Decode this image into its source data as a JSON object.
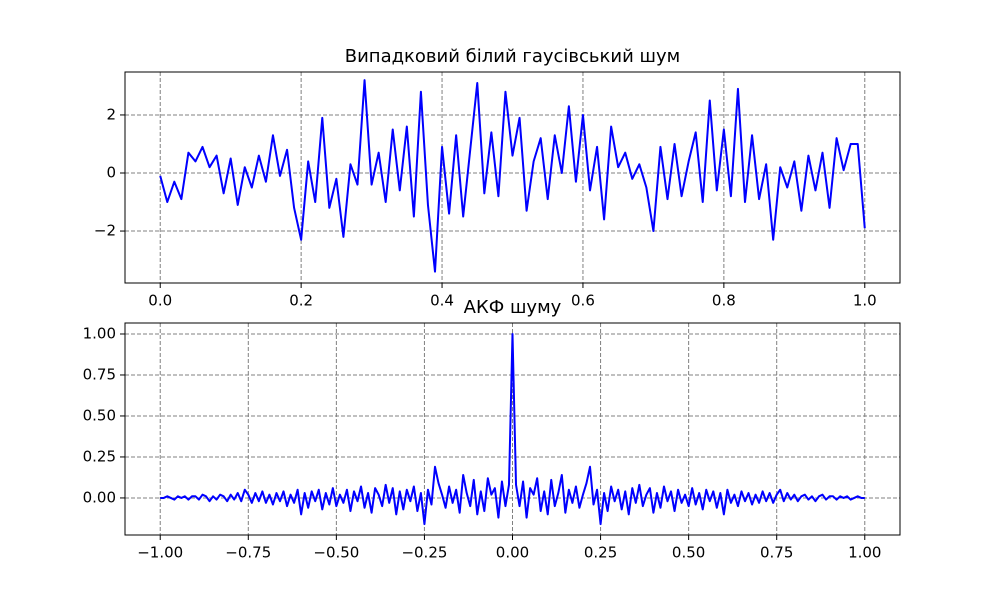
{
  "chart_data": [
    {
      "type": "line",
      "title": "Випадковий білий гаусівський шум",
      "color": "#0000ff",
      "grid": true,
      "xlim": [
        -0.05,
        1.05
      ],
      "ylim": [
        -3.79,
        3.48
      ],
      "xticks": [
        {
          "value": 0,
          "label": "0.0"
        },
        {
          "value": 0.2,
          "label": "0.2"
        },
        {
          "value": 0.4,
          "label": "0.4"
        },
        {
          "value": 0.6,
          "label": "0.6"
        },
        {
          "value": 0.8,
          "label": "0.8"
        },
        {
          "value": 1,
          "label": "1.0"
        }
      ],
      "yticks": [
        {
          "value": -2,
          "label": "−2"
        },
        0,
        2
      ],
      "x": [
        0,
        0.01,
        0.02,
        0.03,
        0.04,
        0.05,
        0.06,
        0.07,
        0.08,
        0.09,
        0.1,
        0.11,
        0.12,
        0.13,
        0.14,
        0.15,
        0.16,
        0.17,
        0.18,
        0.19,
        0.2,
        0.21,
        0.22,
        0.23,
        0.24,
        0.25,
        0.26,
        0.27,
        0.28,
        0.29,
        0.3,
        0.31,
        0.32,
        0.33,
        0.34,
        0.35,
        0.36,
        0.37,
        0.38,
        0.39,
        0.4,
        0.41,
        0.42,
        0.43,
        0.44,
        0.45,
        0.46,
        0.47,
        0.48,
        0.49,
        0.5,
        0.51,
        0.52,
        0.53,
        0.54,
        0.55,
        0.56,
        0.57,
        0.58,
        0.59,
        0.6,
        0.61,
        0.62,
        0.63,
        0.64,
        0.65,
        0.66,
        0.67,
        0.68,
        0.69,
        0.7,
        0.71,
        0.72,
        0.73,
        0.74,
        0.75,
        0.76,
        0.77,
        0.78,
        0.79,
        0.8,
        0.81,
        0.82,
        0.83,
        0.84,
        0.85,
        0.86,
        0.87,
        0.88,
        0.89,
        0.9,
        0.91,
        0.92,
        0.93,
        0.94,
        0.95,
        0.96,
        0.97,
        0.98,
        0.99,
        1
      ],
      "values": [
        -0.1,
        -1.0,
        -0.3,
        -0.9,
        0.7,
        0.4,
        0.9,
        0.2,
        0.6,
        -0.7,
        0.5,
        -1.1,
        0.2,
        -0.5,
        0.6,
        -0.3,
        1.3,
        -0.1,
        0.8,
        -1.2,
        -2.3,
        0.4,
        -1.0,
        1.9,
        -1.2,
        -0.2,
        -2.2,
        0.3,
        -0.4,
        3.2,
        -0.4,
        0.7,
        -1.0,
        1.5,
        -0.6,
        1.6,
        -1.5,
        2.8,
        -1.1,
        -3.4,
        0.9,
        -1.4,
        1.3,
        -1.5,
        0.8,
        3.1,
        -0.7,
        1.4,
        -0.8,
        2.8,
        0.6,
        1.9,
        -1.3,
        0.4,
        1.2,
        -0.9,
        1.3,
        0.0,
        2.3,
        -0.3,
        2.0,
        -0.6,
        0.9,
        -1.6,
        1.6,
        0.2,
        0.7,
        -0.2,
        0.3,
        -0.5,
        -2.0,
        0.9,
        -0.9,
        1.0,
        -0.8,
        0.4,
        1.4,
        -1.0,
        2.5,
        -0.6,
        1.5,
        -0.8,
        2.9,
        -1.0,
        1.3,
        -0.9,
        0.3,
        -2.3,
        0.2,
        -0.5,
        0.4,
        -1.3,
        0.6,
        -0.6,
        0.7,
        -1.2,
        1.2,
        0.1,
        1.0,
        1.0,
        -1.9
      ]
    },
    {
      "type": "line",
      "title": "АКФ шуму",
      "color": "#0000ff",
      "grid": true,
      "xlim": [
        -1.1,
        1.1
      ],
      "ylim": [
        -0.226,
        1.067
      ],
      "xticks": [
        {
          "value": -1,
          "label": "−1.00"
        },
        {
          "value": -0.75,
          "label": "−0.75"
        },
        {
          "value": -0.5,
          "label": "−0.50"
        },
        {
          "value": -0.25,
          "label": "−0.25"
        },
        {
          "value": 0,
          "label": "0.00"
        },
        {
          "value": 0.25,
          "label": "0.25"
        },
        {
          "value": 0.5,
          "label": "0.50"
        },
        {
          "value": 0.75,
          "label": "0.75"
        },
        {
          "value": 1,
          "label": "1.00"
        }
      ],
      "yticks": [
        {
          "value": 0,
          "label": "0.00"
        },
        {
          "value": 0.25,
          "label": "0.25"
        },
        {
          "value": 0.5,
          "label": "0.50"
        },
        {
          "value": 0.75,
          "label": "0.75"
        },
        {
          "value": 1,
          "label": "1.00"
        }
      ],
      "x": [
        -1,
        -0.99,
        -0.98,
        -0.97,
        -0.96,
        -0.95,
        -0.94,
        -0.93,
        -0.92,
        -0.91,
        -0.9,
        -0.89,
        -0.88,
        -0.87,
        -0.86,
        -0.85,
        -0.84,
        -0.83,
        -0.82,
        -0.81,
        -0.8,
        -0.79,
        -0.78,
        -0.77,
        -0.76,
        -0.75,
        -0.74,
        -0.73,
        -0.72,
        -0.71,
        -0.7,
        -0.69,
        -0.68,
        -0.67,
        -0.66,
        -0.65,
        -0.64,
        -0.63,
        -0.62,
        -0.61,
        -0.6,
        -0.59,
        -0.58,
        -0.57,
        -0.56,
        -0.55,
        -0.54,
        -0.53,
        -0.52,
        -0.51,
        -0.5,
        -0.49,
        -0.48,
        -0.47,
        -0.46,
        -0.45,
        -0.44,
        -0.43,
        -0.42,
        -0.41,
        -0.4,
        -0.39,
        -0.38,
        -0.37,
        -0.36,
        -0.35,
        -0.34,
        -0.33,
        -0.32,
        -0.31,
        -0.3,
        -0.29,
        -0.28,
        -0.27,
        -0.26,
        -0.25,
        -0.24,
        -0.23,
        -0.22,
        -0.21,
        -0.2,
        -0.19,
        -0.18,
        -0.17,
        -0.16,
        -0.15,
        -0.14,
        -0.13,
        -0.12,
        -0.11,
        -0.1,
        -0.09,
        -0.08,
        -0.07,
        -0.06,
        -0.05,
        -0.04,
        -0.03,
        -0.02,
        -0.01,
        0,
        0.01,
        0.02,
        0.03,
        0.04,
        0.05,
        0.06,
        0.07,
        0.08,
        0.09,
        0.1,
        0.11,
        0.12,
        0.13,
        0.14,
        0.15,
        0.16,
        0.17,
        0.18,
        0.19,
        0.2,
        0.21,
        0.22,
        0.23,
        0.24,
        0.25,
        0.26,
        0.27,
        0.28,
        0.29,
        0.3,
        0.31,
        0.32,
        0.33,
        0.34,
        0.35,
        0.36,
        0.37,
        0.38,
        0.39,
        0.4,
        0.41,
        0.42,
        0.43,
        0.44,
        0.45,
        0.46,
        0.47,
        0.48,
        0.49,
        0.5,
        0.51,
        0.52,
        0.53,
        0.54,
        0.55,
        0.56,
        0.57,
        0.58,
        0.59,
        0.6,
        0.61,
        0.62,
        0.63,
        0.64,
        0.65,
        0.66,
        0.67,
        0.68,
        0.69,
        0.7,
        0.71,
        0.72,
        0.73,
        0.74,
        0.75,
        0.76,
        0.77,
        0.78,
        0.79,
        0.8,
        0.81,
        0.82,
        0.83,
        0.84,
        0.85,
        0.86,
        0.87,
        0.88,
        0.89,
        0.9,
        0.91,
        0.92,
        0.93,
        0.94,
        0.95,
        0.96,
        0.97,
        0.98,
        0.99,
        1
      ],
      "values": [
        0.0,
        0.0,
        0.01,
        0.0,
        -0.01,
        0.01,
        0.0,
        0.01,
        -0.01,
        0.01,
        0.01,
        -0.01,
        0.02,
        0.01,
        -0.02,
        0.01,
        -0.01,
        0.02,
        0.01,
        -0.02,
        0.02,
        -0.01,
        0.03,
        -0.02,
        0.05,
        0.02,
        -0.03,
        0.03,
        -0.02,
        0.04,
        -0.03,
        0.02,
        -0.04,
        0.03,
        -0.02,
        0.04,
        -0.05,
        0.02,
        -0.03,
        0.05,
        -0.1,
        0.03,
        -0.06,
        0.04,
        -0.02,
        0.05,
        -0.07,
        0.03,
        -0.04,
        0.06,
        -0.05,
        0.02,
        -0.03,
        0.05,
        -0.08,
        0.04,
        -0.02,
        0.07,
        -0.06,
        0.03,
        -0.09,
        0.06,
        0.02,
        -0.05,
        0.08,
        -0.03,
        0.06,
        -0.1,
        0.04,
        -0.07,
        0.05,
        -0.02,
        0.07,
        -0.08,
        0.03,
        -0.16,
        0.05,
        -0.04,
        0.19,
        0.09,
        0.02,
        -0.06,
        0.07,
        -0.03,
        0.05,
        -0.09,
        0.14,
        0.03,
        -0.05,
        0.11,
        -0.1,
        0.04,
        -0.08,
        0.12,
        0.02,
        0.06,
        -0.12,
        0.1,
        -0.05,
        0.08,
        1.0,
        0.08,
        -0.05,
        0.1,
        -0.12,
        0.06,
        0.02,
        0.12,
        -0.08,
        0.04,
        -0.1,
        0.11,
        -0.05,
        0.03,
        0.14,
        -0.09,
        0.05,
        -0.03,
        0.07,
        -0.06,
        0.02,
        0.09,
        0.19,
        -0.04,
        0.05,
        -0.16,
        0.03,
        -0.08,
        0.07,
        -0.02,
        0.05,
        -0.07,
        0.04,
        -0.1,
        0.06,
        -0.03,
        0.08,
        -0.05,
        0.02,
        0.06,
        -0.09,
        0.03,
        -0.06,
        0.07,
        -0.02,
        0.04,
        -0.08,
        0.05,
        -0.03,
        0.02,
        -0.05,
        0.06,
        -0.04,
        0.03,
        -0.07,
        0.05,
        -0.02,
        0.04,
        -0.06,
        0.03,
        -0.1,
        0.05,
        -0.03,
        0.02,
        -0.05,
        0.04,
        -0.02,
        0.03,
        -0.04,
        0.02,
        -0.03,
        0.04,
        -0.02,
        0.03,
        -0.03,
        0.02,
        0.05,
        -0.02,
        0.03,
        -0.01,
        0.02,
        -0.02,
        0.01,
        0.02,
        -0.01,
        0.01,
        -0.02,
        0.01,
        0.02,
        -0.01,
        0.01,
        0.01,
        -0.01,
        0.01,
        0.0,
        0.01,
        -0.01,
        0.0,
        0.01,
        0.0,
        0.0
      ]
    }
  ]
}
